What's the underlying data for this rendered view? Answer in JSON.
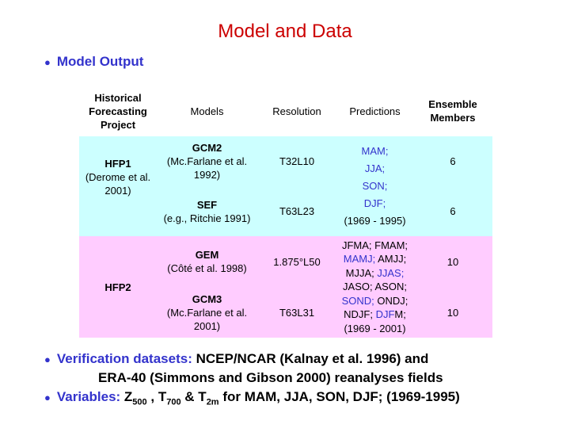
{
  "title": "Model and Data",
  "section_heading": "Model Output",
  "table": {
    "header": [
      "Historical Forecasting Project",
      "Models",
      "Resolution",
      "Predictions",
      "Ensemble Members"
    ],
    "groups": [
      {
        "project": "HFP1",
        "project_note": "(Derome et al. 2001)",
        "background": "#ccffff",
        "models": [
          {
            "name": "GCM2",
            "ref": "(Mc.Farlane et al. 1992)",
            "resolution": "T32L10",
            "members": 6
          },
          {
            "name": "SEF",
            "ref": "(e.g., Ritchie 1991)",
            "resolution": "T63L23",
            "members": 6
          }
        ],
        "predictions": [
          [
            {
              "text": "MAM;",
              "color": "#3333cc"
            }
          ],
          [
            {
              "text": "JJA;",
              "color": "#3333cc"
            }
          ],
          [
            {
              "text": "SON;",
              "color": "#3333cc"
            }
          ],
          [
            {
              "text": "DJF;",
              "color": "#3333cc"
            }
          ],
          [
            {
              "text": "(1969 - 1995)"
            }
          ]
        ]
      },
      {
        "project": "HFP2",
        "background": "#ffccff",
        "models": [
          {
            "name": "GEM",
            "ref": "(Côté et al. 1998)",
            "resolution": "1.875°L50",
            "members": 10
          },
          {
            "name": "GCM3",
            "ref": "(Mc.Farlane et al. 2001)",
            "resolution": "T63L31",
            "members": 10
          }
        ],
        "predictions": [
          [
            {
              "text": "JFMA; FMAM;"
            }
          ],
          [
            {
              "text": "MAMJ;",
              "color": "#3333cc"
            },
            {
              "text": " AMJJ;"
            }
          ],
          [
            {
              "text": "MJJA; "
            },
            {
              "text": "JJAS;",
              "color": "#3333cc"
            }
          ],
          [
            {
              "text": "JASO; ASON;"
            }
          ],
          [
            {
              "text": "SOND;",
              "color": "#3333cc"
            },
            {
              "text": " ONDJ;"
            }
          ],
          [
            {
              "text": "NDJF; "
            },
            {
              "text": "DJF",
              "color": "#3333cc"
            },
            {
              "text": "M;"
            }
          ],
          [
            {
              "text": "(1969 - 2001)"
            }
          ]
        ]
      }
    ]
  },
  "bullets": [
    [
      [
        {
          "text": "Verification datasets:",
          "color": "#3333cc"
        },
        {
          "text": " NCEP/NCAR (Kalnay et al. 1996) and"
        }
      ],
      [
        {
          "text": "ERA-40 (Simmons and Gibson 2000) reanalyses fields"
        }
      ]
    ],
    [
      [
        {
          "text": "Variables:",
          "color": "#3333cc"
        },
        {
          "text": " Z"
        },
        {
          "text": "500",
          "sub": true
        },
        {
          "text": " , T"
        },
        {
          "text": "700",
          "sub": true
        },
        {
          "text": " & T"
        },
        {
          "text": "2m",
          "sub": true
        },
        {
          "text": " for MAM, JJA, SON, DJF; (1969-1995)"
        }
      ]
    ]
  ]
}
